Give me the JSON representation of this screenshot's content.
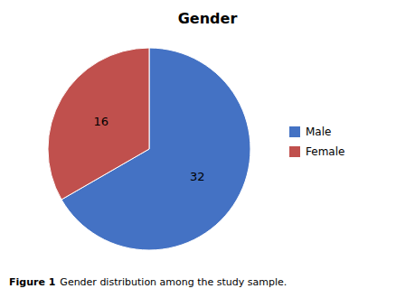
{
  "chart_data": {
    "type": "pie",
    "title": "Gender",
    "categories": [
      "Male",
      "Female"
    ],
    "values": [
      32,
      16
    ],
    "colors": [
      "#4472C4",
      "#C0504D"
    ],
    "data_labels": true,
    "legend": "right",
    "annotations": [
      "Figure 1",
      "Gender distribution among the study sample."
    ]
  }
}
